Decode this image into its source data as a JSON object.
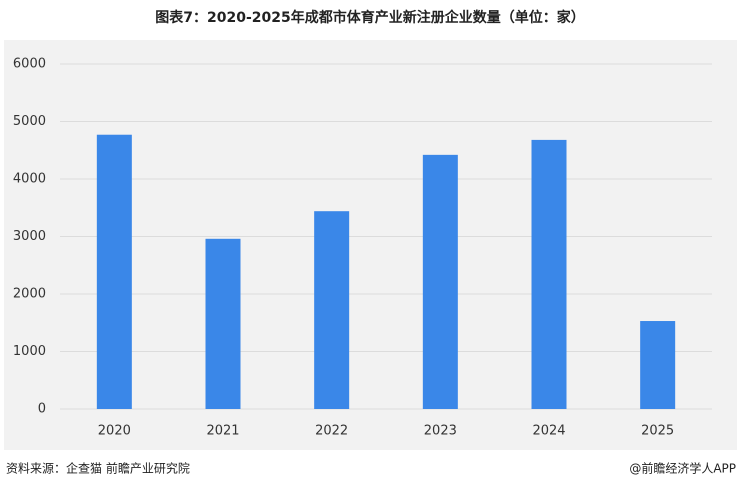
{
  "chart_data": {
    "type": "bar",
    "title": "图表7：2020-2025年成都市体育产业新注册企业数量（单位：家）",
    "categories": [
      "2020",
      "2021",
      "2022",
      "2023",
      "2024",
      "2025"
    ],
    "values": [
      4770,
      2960,
      3440,
      4420,
      4680,
      1530
    ],
    "color": "#3a87e8",
    "ylim": [
      0,
      6000
    ],
    "yticks": [
      0,
      1000,
      2000,
      3000,
      4000,
      5000,
      6000
    ],
    "grid": true
  },
  "footer": {
    "source": "资料来源：企查猫  前瞻产业研究院",
    "brand": "@前瞻经济学人APP"
  }
}
